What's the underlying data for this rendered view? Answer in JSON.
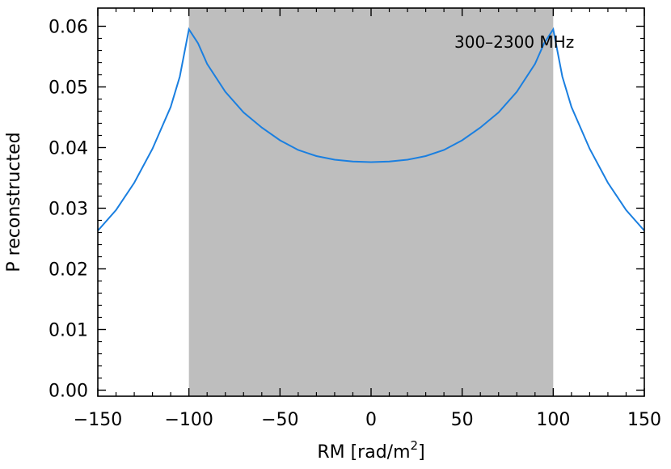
{
  "chart_data": {
    "type": "line",
    "title": "",
    "annotation": "300–2300 MHz",
    "xlabel": "RM [rad/m",
    "xlabel_sup": "2",
    "xlabel_end": "]",
    "ylabel": "P reconstructed",
    "xlim": [
      -150,
      150
    ],
    "ylim": [
      -0.001,
      0.063
    ],
    "xticks": [
      -150,
      -100,
      -50,
      0,
      50,
      100,
      150
    ],
    "xtick_labels": [
      "−150",
      "−100",
      "−50",
      "0",
      "50",
      "100",
      "150"
    ],
    "yticks": [
      0.0,
      0.01,
      0.02,
      0.03,
      0.04,
      0.05,
      0.06
    ],
    "ytick_labels": [
      "0.00",
      "0.01",
      "0.02",
      "0.03",
      "0.04",
      "0.05",
      "0.06"
    ],
    "shaded_region": {
      "x": [
        -100,
        100
      ],
      "color": "#bebebe"
    },
    "grid": false,
    "series": [
      {
        "color": "#1a7fe0",
        "x": [
          -150,
          -140,
          -130,
          -120,
          -110,
          -105,
          -100,
          -95,
          -90,
          -80,
          -70,
          -60,
          -50,
          -40,
          -30,
          -20,
          -10,
          0,
          10,
          20,
          30,
          40,
          50,
          60,
          70,
          80,
          90,
          95,
          100,
          105,
          110,
          120,
          130,
          140,
          150
        ],
        "values": [
          0.0263,
          0.0297,
          0.0342,
          0.0398,
          0.0467,
          0.0517,
          0.0595,
          0.0572,
          0.0538,
          0.0492,
          0.0458,
          0.0433,
          0.0412,
          0.0396,
          0.0386,
          0.038,
          0.0377,
          0.0376,
          0.0377,
          0.038,
          0.0386,
          0.0396,
          0.0412,
          0.0433,
          0.0458,
          0.0492,
          0.0538,
          0.0572,
          0.0595,
          0.0517,
          0.0467,
          0.0398,
          0.0342,
          0.0297,
          0.0263
        ]
      }
    ]
  }
}
